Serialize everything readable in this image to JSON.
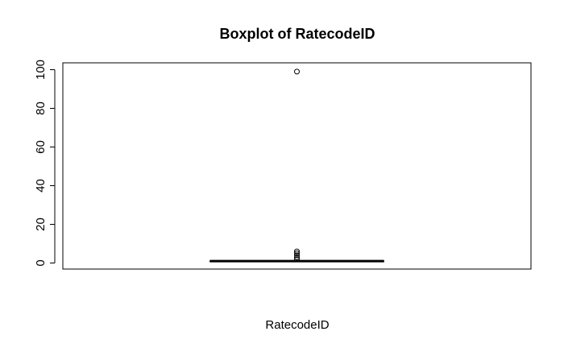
{
  "chart_data": {
    "type": "boxplot",
    "title": "Boxplot of RatecodeID",
    "xlabel": "RatecodeID",
    "ylabel": "",
    "ylim": [
      0,
      100
    ],
    "yticks": [
      0,
      20,
      40,
      60,
      80,
      100
    ],
    "grid": false,
    "series": [
      {
        "category": "RatecodeID",
        "min": 1,
        "q1": 1,
        "median": 1,
        "q3": 1,
        "max": 1,
        "outliers": [
          2,
          3,
          4,
          5,
          6,
          99
        ]
      }
    ]
  }
}
